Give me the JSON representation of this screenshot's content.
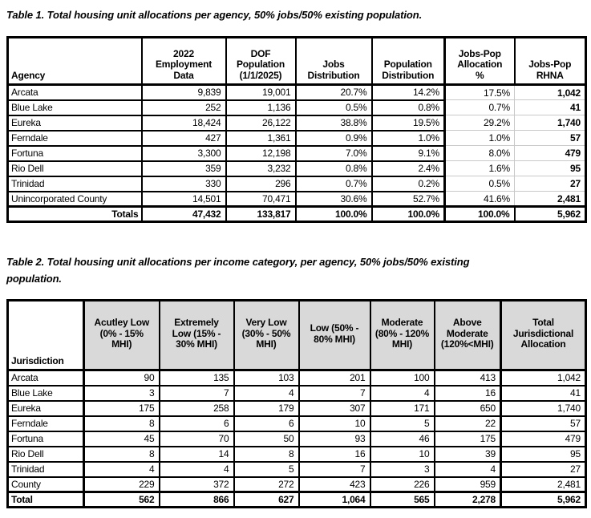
{
  "table1": {
    "title": "Table 1. Total housing unit allocations per agency, 50% jobs/50% existing population.",
    "columns": [
      "Agency",
      "2022\nEmployment\nData",
      "DOF\nPopulation\n(1/1/2025)",
      "Jobs\nDistribution",
      "Population\nDistribution",
      "Jobs-Pop\nAllocation\n%",
      "Jobs-Pop\nRHNA"
    ],
    "rows": [
      [
        "Arcata",
        "9,839",
        "19,001",
        "20.7%",
        "14.2%",
        "17.5%",
        "1,042"
      ],
      [
        "Blue Lake",
        "252",
        "1,136",
        "0.5%",
        "0.8%",
        "0.7%",
        "41"
      ],
      [
        "Eureka",
        "18,424",
        "26,122",
        "38.8%",
        "19.5%",
        "29.2%",
        "1,740"
      ],
      [
        "Ferndale",
        "427",
        "1,361",
        "0.9%",
        "1.0%",
        "1.0%",
        "57"
      ],
      [
        "Fortuna",
        "3,300",
        "12,198",
        "7.0%",
        "9.1%",
        "8.0%",
        "479"
      ],
      [
        "Rio Dell",
        "359",
        "3,232",
        "0.8%",
        "2.4%",
        "1.6%",
        "95"
      ],
      [
        "Trinidad",
        "330",
        "296",
        "0.7%",
        "0.2%",
        "0.5%",
        "27"
      ],
      [
        "Unincorporated County",
        "14,501",
        "70,471",
        "30.6%",
        "52.7%",
        "41.6%",
        "2,481"
      ]
    ],
    "totals": [
      "Totals",
      "47,432",
      "133,817",
      "100.0%",
      "100.0%",
      "100.0%",
      "5,962"
    ]
  },
  "table2": {
    "title": "Table 2. Total housing unit allocations per income category, per agency, 50% jobs/50% existing\npopulation.",
    "columns": [
      "Jurisdiction",
      "Acutley Low\n(0% - 15%\nMHI)",
      "Extremely\nLow (15% -\n30% MHI)",
      "Very Low\n(30% - 50%\nMHI)",
      "Low (50% -\n80% MHI)",
      "Moderate\n(80% - 120%\nMHI)",
      "Above\nModerate\n(120%<MHI)",
      "Total\nJurisdictional\nAllocation"
    ],
    "rows": [
      [
        "Arcata",
        "90",
        "135",
        "103",
        "201",
        "100",
        "413",
        "1,042"
      ],
      [
        "Blue Lake",
        "3",
        "7",
        "4",
        "7",
        "4",
        "16",
        "41"
      ],
      [
        "Eureka",
        "175",
        "258",
        "179",
        "307",
        "171",
        "650",
        "1,740"
      ],
      [
        "Ferndale",
        "8",
        "6",
        "6",
        "10",
        "5",
        "22",
        "57"
      ],
      [
        "Fortuna",
        "45",
        "70",
        "50",
        "93",
        "46",
        "175",
        "479"
      ],
      [
        "Rio Dell",
        "8",
        "14",
        "8",
        "16",
        "10",
        "39",
        "95"
      ],
      [
        "Trinidad",
        "4",
        "4",
        "5",
        "7",
        "3",
        "4",
        "27"
      ],
      [
        "County",
        "229",
        "372",
        "272",
        "423",
        "226",
        "959",
        "2,481"
      ]
    ],
    "totals": [
      "Total",
      "562",
      "866",
      "627",
      "1,064",
      "565",
      "2,278",
      "5,962"
    ]
  },
  "colors": {
    "header_fill": "#d9d9d9",
    "grid_black": "#000000",
    "grid_light": "#c9c9c9",
    "text": "#000000",
    "background": "#ffffff"
  }
}
